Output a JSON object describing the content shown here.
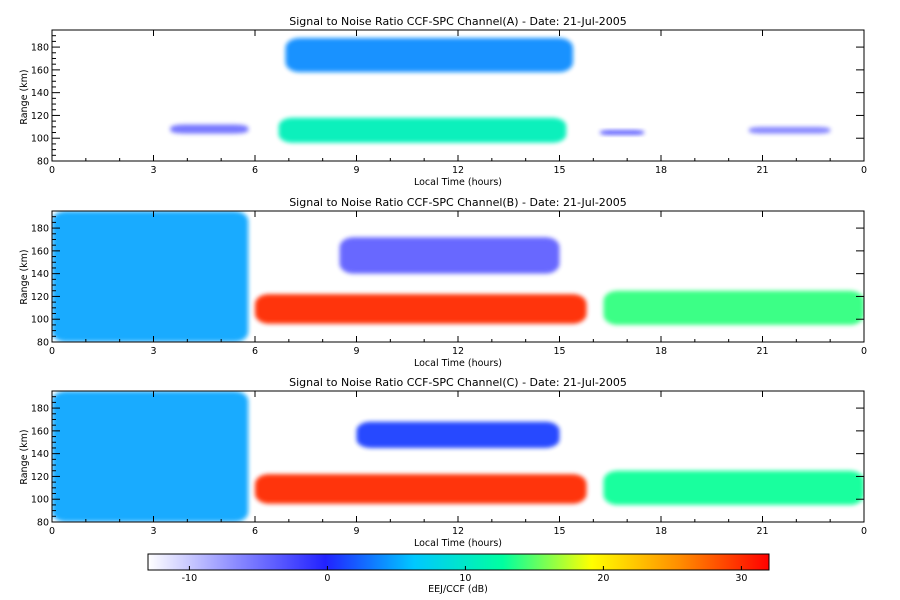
{
  "chart_data": [
    {
      "type": "heatmap",
      "title": "Signal to Noise Ratio CCF-SPC Channel(A) - Date: 21-Jul-2005",
      "xlabel": "Local Time (hours)",
      "ylabel": "Range (km)",
      "xlim": [
        0,
        24
      ],
      "ylim": [
        80,
        195
      ],
      "x_ticks": [
        "0",
        "3",
        "6",
        "9",
        "12",
        "15",
        "18",
        "21",
        "0"
      ],
      "y_ticks": [
        "80",
        "100",
        "120",
        "140",
        "160",
        "180"
      ],
      "features": [
        {
          "x": [
            6.9,
            15.4
          ],
          "y": [
            158,
            188
          ],
          "snr_db": 4,
          "note_level": "upper layer"
        },
        {
          "x": [
            6.7,
            15.2
          ],
          "y": [
            96,
            118
          ],
          "snr_db": 11,
          "note_level": "lower layer"
        },
        {
          "x": [
            3.5,
            5.8
          ],
          "y": [
            104,
            112
          ],
          "snr_db": -5
        },
        {
          "x": [
            16.2,
            17.5
          ],
          "y": [
            103,
            107
          ],
          "snr_db": -3
        },
        {
          "x": [
            20.6,
            23.0
          ],
          "y": [
            104,
            110
          ],
          "snr_db": -6
        }
      ]
    },
    {
      "type": "heatmap",
      "title": "Signal to Noise Ratio CCF-SPC Channel(B) - Date: 21-Jul-2005",
      "xlabel": "Local Time (hours)",
      "ylabel": "Range (km)",
      "xlim": [
        0,
        24
      ],
      "ylim": [
        80,
        195
      ],
      "x_ticks": [
        "0",
        "3",
        "6",
        "9",
        "12",
        "15",
        "18",
        "21",
        "0"
      ],
      "y_ticks": [
        "80",
        "100",
        "120",
        "140",
        "160",
        "180"
      ],
      "features": [
        {
          "x": [
            0,
            5.8
          ],
          "y": [
            80,
            195
          ],
          "snr_db": 5
        },
        {
          "x": [
            6.0,
            15.8
          ],
          "y": [
            96,
            122
          ],
          "snr_db": 30
        },
        {
          "x": [
            8.5,
            15.0
          ],
          "y": [
            140,
            172
          ],
          "snr_db": -4
        },
        {
          "x": [
            16.3,
            24.0
          ],
          "y": [
            95,
            125
          ],
          "snr_db": 14
        }
      ]
    },
    {
      "type": "heatmap",
      "title": "Signal to Noise Ratio CCF-SPC Channel(C) - Date: 21-Jul-2005",
      "xlabel": "Local Time (hours)",
      "ylabel": "Range (km)",
      "xlim": [
        0,
        24
      ],
      "ylim": [
        80,
        195
      ],
      "x_ticks": [
        "0",
        "3",
        "6",
        "9",
        "12",
        "15",
        "18",
        "21",
        "0"
      ],
      "y_ticks": [
        "80",
        "100",
        "120",
        "140",
        "160",
        "180"
      ],
      "features": [
        {
          "x": [
            0,
            5.8
          ],
          "y": [
            80,
            195
          ],
          "snr_db": 5
        },
        {
          "x": [
            6.0,
            15.8
          ],
          "y": [
            96,
            122
          ],
          "snr_db": 30
        },
        {
          "x": [
            9.0,
            15.0
          ],
          "y": [
            145,
            168
          ],
          "snr_db": 1
        },
        {
          "x": [
            16.3,
            24.0
          ],
          "y": [
            95,
            125
          ],
          "snr_db": 13
        }
      ]
    }
  ],
  "colorbar": {
    "label": "EEJ/CCF (dB)",
    "range": [
      -13,
      32
    ],
    "ticks": [
      "-10",
      "0",
      "10",
      "20",
      "30"
    ],
    "tick_values": [
      -10,
      0,
      10,
      20,
      30
    ],
    "colors": [
      "#ffffff",
      "#8a8aff",
      "#2222ff",
      "#00c8ff",
      "#00ffa0",
      "#ffff00",
      "#ff8c00",
      "#ff0000"
    ]
  }
}
